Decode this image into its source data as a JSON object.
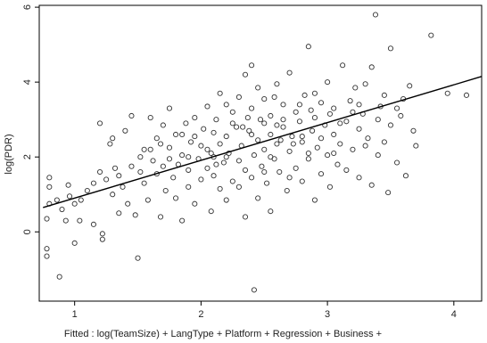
{
  "chart_data": {
    "type": "scatter",
    "xlabel": "Fitted : log(TeamSize) + LangType + Platform + Regression + Business +",
    "ylabel": "log(PDR)",
    "xlim": [
      0.72,
      4.22
    ],
    "ylim": [
      -1.85,
      6.05
    ],
    "x_ticks": [
      1,
      2,
      3,
      4
    ],
    "y_ticks": [
      0,
      2,
      4,
      6
    ],
    "x_tick_labels": [
      "1",
      "2",
      "3",
      "4"
    ],
    "y_tick_labels": [
      "0",
      "2",
      "4",
      "6"
    ],
    "grid": false,
    "legend": "none",
    "fit_line": {
      "x": [
        0.75,
        4.22
      ],
      "y": [
        0.65,
        4.15
      ]
    },
    "marker_color": "#333333",
    "line_color": "#000000",
    "series": [
      {
        "points": [
          [
            0.78,
            -0.45
          ],
          [
            0.78,
            -0.65
          ],
          [
            0.78,
            0.35
          ],
          [
            0.8,
            0.75
          ],
          [
            0.8,
            1.2
          ],
          [
            0.8,
            1.45
          ],
          [
            0.86,
            0.85
          ],
          [
            0.88,
            -1.2
          ],
          [
            0.9,
            0.6
          ],
          [
            0.93,
            0.3
          ],
          [
            0.95,
            1.25
          ],
          [
            0.96,
            0.95
          ],
          [
            1.0,
            0.75
          ],
          [
            1.04,
            0.3
          ],
          [
            1.05,
            0.85
          ],
          [
            1.1,
            1.1
          ],
          [
            1.15,
            1.3
          ],
          [
            1.2,
            1.6
          ],
          [
            1.2,
            2.9
          ],
          [
            1.22,
            -0.05
          ],
          [
            1.22,
            -0.2
          ],
          [
            1.25,
            1.4
          ],
          [
            1.28,
            2.35
          ],
          [
            1.3,
            1.0
          ],
          [
            1.32,
            1.7
          ],
          [
            1.35,
            0.5
          ],
          [
            1.38,
            1.2
          ],
          [
            1.4,
            2.7
          ],
          [
            1.42,
            0.75
          ],
          [
            1.45,
            1.75
          ],
          [
            1.45,
            3.1
          ],
          [
            1.48,
            0.45
          ],
          [
            1.5,
            -0.7
          ],
          [
            1.52,
            1.6
          ],
          [
            1.55,
            1.3
          ],
          [
            1.55,
            2.2
          ],
          [
            1.58,
            0.85
          ],
          [
            1.6,
            3.05
          ],
          [
            1.62,
            1.9
          ],
          [
            1.65,
            1.55
          ],
          [
            1.65,
            2.5
          ],
          [
            1.68,
            0.4
          ],
          [
            1.7,
            1.75
          ],
          [
            1.7,
            2.85
          ],
          [
            1.72,
            1.1
          ],
          [
            1.75,
            2.25
          ],
          [
            1.75,
            3.3
          ],
          [
            1.78,
            1.45
          ],
          [
            1.8,
            0.9
          ],
          [
            1.8,
            2.6
          ],
          [
            1.82,
            1.8
          ],
          [
            1.85,
            0.3
          ],
          [
            1.85,
            2.05
          ],
          [
            1.88,
            2.9
          ],
          [
            1.9,
            1.2
          ],
          [
            1.9,
            1.65
          ],
          [
            1.92,
            2.4
          ],
          [
            1.95,
            0.75
          ],
          [
            1.95,
            3.05
          ],
          [
            1.98,
            1.95
          ],
          [
            2.0,
            2.3
          ],
          [
            2.0,
            1.4
          ],
          [
            2.02,
            2.75
          ],
          [
            2.05,
            1.7
          ],
          [
            2.05,
            3.35
          ],
          [
            2.08,
            0.55
          ],
          [
            2.08,
            2.1
          ],
          [
            2.1,
            1.5
          ],
          [
            2.1,
            2.65
          ],
          [
            2.12,
            3.0
          ],
          [
            2.15,
            1.15
          ],
          [
            2.15,
            2.35
          ],
          [
            2.15,
            3.7
          ],
          [
            2.18,
            1.85
          ],
          [
            2.2,
            0.85
          ],
          [
            2.2,
            2.55
          ],
          [
            2.22,
            2.1
          ],
          [
            2.25,
            3.2
          ],
          [
            2.25,
            1.35
          ],
          [
            2.28,
            2.8
          ],
          [
            2.3,
            1.9
          ],
          [
            2.3,
            3.6
          ],
          [
            2.32,
            2.3
          ],
          [
            2.35,
            0.4
          ],
          [
            2.35,
            1.65
          ],
          [
            2.35,
            4.2
          ],
          [
            2.38,
            2.7
          ],
          [
            2.4,
            1.45
          ],
          [
            2.4,
            3.3
          ],
          [
            2.4,
            4.45
          ],
          [
            2.42,
            -1.55
          ],
          [
            2.42,
            2.05
          ],
          [
            2.45,
            2.45
          ],
          [
            2.45,
            0.9
          ],
          [
            2.45,
            3.85
          ],
          [
            2.48,
            1.75
          ],
          [
            2.5,
            2.9
          ],
          [
            2.5,
            2.2
          ],
          [
            2.5,
            3.55
          ],
          [
            2.52,
            1.3
          ],
          [
            2.55,
            2.6
          ],
          [
            2.55,
            3.1
          ],
          [
            2.55,
            0.55
          ],
          [
            2.58,
            1.95
          ],
          [
            2.6,
            2.35
          ],
          [
            2.6,
            3.95
          ],
          [
            2.62,
            1.6
          ],
          [
            2.65,
            2.8
          ],
          [
            2.65,
            3.4
          ],
          [
            2.68,
            1.1
          ],
          [
            2.7,
            2.15
          ],
          [
            2.7,
            4.25
          ],
          [
            2.72,
            2.55
          ],
          [
            2.75,
            1.7
          ],
          [
            2.75,
            3.2
          ],
          [
            2.78,
            2.95
          ],
          [
            2.8,
            1.35
          ],
          [
            2.8,
            2.4
          ],
          [
            2.82,
            3.65
          ],
          [
            2.85,
            4.95
          ],
          [
            2.85,
            1.95
          ],
          [
            2.88,
            2.7
          ],
          [
            2.9,
            3.05
          ],
          [
            2.9,
            0.85
          ],
          [
            2.92,
            2.25
          ],
          [
            2.95,
            3.45
          ],
          [
            2.95,
            1.55
          ],
          [
            2.98,
            2.85
          ],
          [
            3.0,
            4.0
          ],
          [
            3.0,
            2.05
          ],
          [
            3.02,
            1.2
          ],
          [
            3.05,
            2.6
          ],
          [
            3.05,
            3.3
          ],
          [
            3.08,
            1.8
          ],
          [
            3.1,
            2.35
          ],
          [
            3.12,
            4.45
          ],
          [
            3.15,
            1.65
          ],
          [
            3.15,
            2.95
          ],
          [
            3.18,
            3.5
          ],
          [
            3.2,
            2.2
          ],
          [
            3.22,
            3.85
          ],
          [
            3.25,
            1.45
          ],
          [
            3.25,
            2.75
          ],
          [
            3.28,
            3.15
          ],
          [
            3.3,
            3.95
          ],
          [
            3.32,
            2.5
          ],
          [
            3.35,
            1.25
          ],
          [
            3.35,
            4.4
          ],
          [
            3.38,
            5.8
          ],
          [
            3.4,
            2.05
          ],
          [
            3.42,
            3.35
          ],
          [
            3.45,
            3.65
          ],
          [
            3.45,
            2.4
          ],
          [
            3.48,
            1.05
          ],
          [
            3.5,
            4.9
          ],
          [
            3.5,
            2.85
          ],
          [
            3.55,
            1.85
          ],
          [
            3.58,
            3.1
          ],
          [
            3.6,
            3.55
          ],
          [
            3.62,
            1.5
          ],
          [
            3.65,
            3.9
          ],
          [
            3.68,
            2.7
          ],
          [
            3.82,
            5.25
          ],
          [
            3.95,
            3.7
          ],
          [
            4.1,
            3.65
          ],
          [
            1.6,
            2.2
          ],
          [
            1.85,
            2.6
          ],
          [
            2.1,
            2.0
          ],
          [
            2.25,
            2.9
          ],
          [
            2.4,
            2.6
          ],
          [
            2.55,
            2.0
          ],
          [
            2.65,
            3.0
          ],
          [
            2.78,
            3.4
          ],
          [
            2.95,
            2.5
          ],
          [
            3.1,
            2.9
          ],
          [
            3.25,
            3.4
          ],
          [
            2.05,
            2.2
          ],
          [
            2.2,
            2.0
          ],
          [
            2.33,
            2.8
          ],
          [
            2.47,
            3.0
          ],
          [
            2.6,
            2.85
          ],
          [
            2.73,
            2.35
          ],
          [
            2.87,
            3.25
          ],
          [
            3.02,
            3.15
          ],
          [
            1.75,
            1.95
          ],
          [
            1.95,
            2.55
          ],
          [
            2.3,
            1.2
          ],
          [
            2.5,
            1.6
          ],
          [
            2.7,
            1.45
          ],
          [
            2.85,
            2.1
          ],
          [
            1.3,
            2.5
          ],
          [
            1.52,
            2.0
          ],
          [
            1.68,
            2.35
          ],
          [
            2.12,
            1.8
          ],
          [
            2.37,
            3.05
          ],
          [
            2.58,
            3.6
          ],
          [
            2.8,
            2.55
          ],
          [
            3.05,
            2.1
          ],
          [
            3.2,
            3.2
          ],
          [
            3.4,
            3.0
          ],
          [
            1.15,
            0.2
          ],
          [
            1.0,
            -0.3
          ],
          [
            1.35,
            1.5
          ],
          [
            1.9,
            2.0
          ],
          [
            2.2,
            3.4
          ],
          [
            2.63,
            2.45
          ],
          [
            2.9,
            3.7
          ],
          [
            3.3,
            2.3
          ],
          [
            3.55,
            3.3
          ],
          [
            3.7,
            2.3
          ]
        ]
      }
    ]
  }
}
